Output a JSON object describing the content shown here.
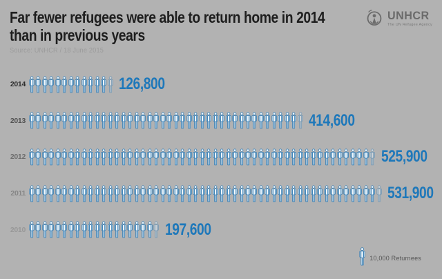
{
  "header": {
    "title_line1": "Far fewer refugees were able to return home in 2014",
    "title_line2": "than in previous years",
    "source": "Source: UNHCR / 18 June 2015",
    "logo_name": "UNHCR",
    "logo_tagline": "The UN Refugee Agency"
  },
  "chart_data": {
    "type": "bar",
    "subtype": "pictogram",
    "title": "Far fewer refugees were able to return home in 2014 than in previous years",
    "unit_per_icon": 10000,
    "icon": "person-icon",
    "categories": [
      "2014",
      "2013",
      "2012",
      "2011",
      "2010"
    ],
    "values": [
      126800,
      414600,
      525900,
      531900,
      197600
    ],
    "value_labels": [
      "126,800",
      "414,600",
      "525,900",
      "531,900",
      "197,600"
    ],
    "legend": "10,000 Returnees",
    "legend_position": "bottom-right",
    "colors": {
      "background": "#b2b2b2",
      "value_text": "#1e78ba",
      "icon_outline": "#3f82b5",
      "icon_fill_light": "#ffffff",
      "icon_fill_shade": "#cde4f2",
      "year_labels": [
        "#2e2e2e",
        "#525252",
        "#6e6e6e",
        "#868686",
        "#989898"
      ]
    }
  }
}
